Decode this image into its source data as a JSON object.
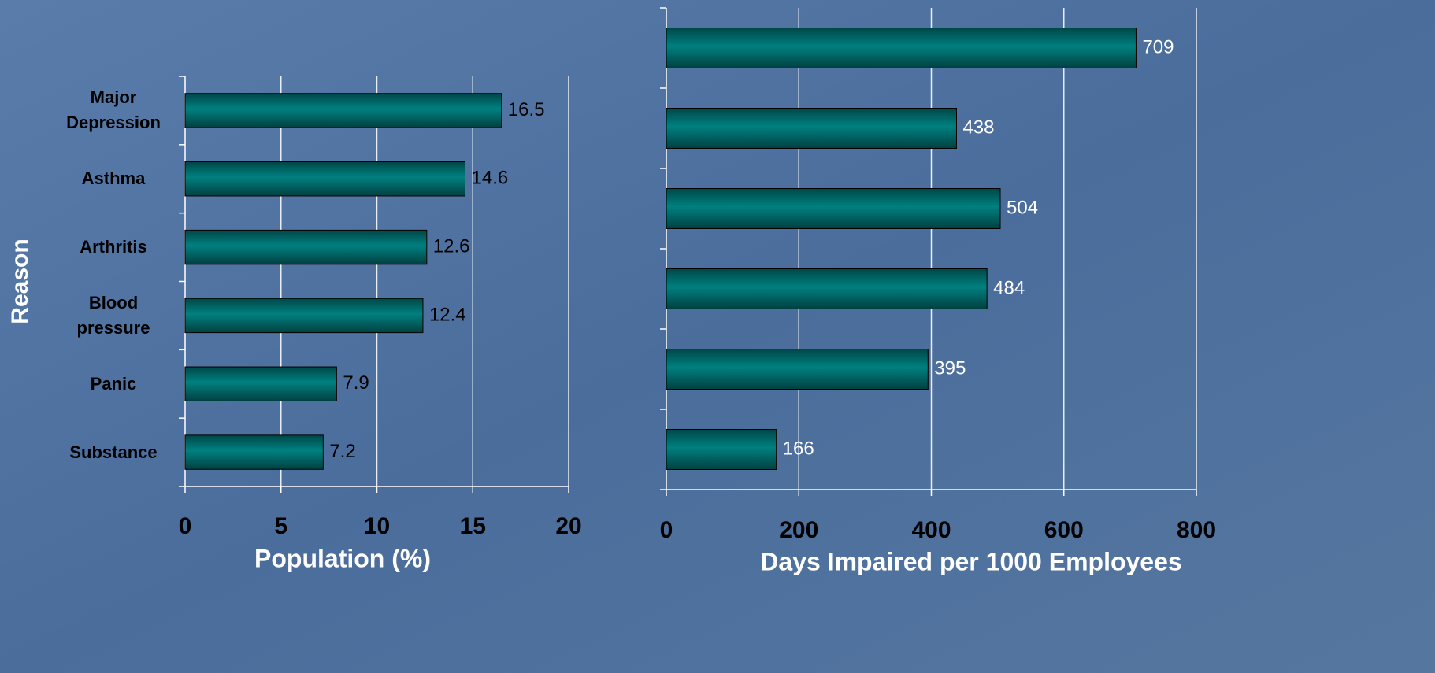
{
  "chart_data": [
    {
      "type": "bar",
      "orientation": "horizontal",
      "categories": [
        "Major Depression",
        "Asthma",
        "Arthritis",
        "Blood pressure",
        "Panic",
        "Substance"
      ],
      "values": [
        16.5,
        14.6,
        12.6,
        12.4,
        7.9,
        7.2
      ],
      "color": "#008080",
      "xlim": [
        0,
        20
      ],
      "xticks": [
        0,
        5,
        10,
        15,
        20
      ],
      "x_label": "Population (%)",
      "y_label": "Reason",
      "grid": true
    },
    {
      "type": "bar",
      "orientation": "horizontal",
      "categories": [
        null,
        null,
        null,
        null,
        null,
        null
      ],
      "values": [
        709,
        438,
        504,
        484,
        395,
        166
      ],
      "color": "#008080",
      "xlim": [
        0,
        800
      ],
      "xticks": [
        0,
        200,
        400,
        600,
        800
      ],
      "x_label": "Days Impaired per 1000 Employees",
      "grid": true
    }
  ]
}
